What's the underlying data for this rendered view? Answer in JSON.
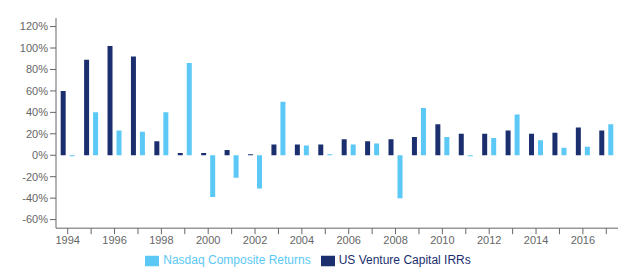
{
  "chart_data": {
    "type": "bar",
    "categories": [
      "1994",
      null,
      "1996",
      null,
      "1998",
      null,
      "2000",
      null,
      "2002",
      null,
      "2004",
      null,
      "2006",
      null,
      "2008",
      null,
      "2010",
      null,
      "2012",
      null,
      "2014",
      null,
      "2016",
      null
    ],
    "series": [
      {
        "name": "US Venture Capital IRRs",
        "color": "#1b2f6e",
        "values": [
          0.6,
          0.89,
          1.02,
          0.92,
          0.13,
          0.02,
          0.02,
          0.05,
          0.01,
          0.1,
          0.1,
          0.1,
          0.15,
          0.13,
          0.15,
          0.17,
          0.29,
          0.2,
          0.2,
          0.23,
          0.2,
          0.21,
          0.26,
          0.23
        ]
      },
      {
        "name": "Nasdaq Composite Returns",
        "color": "#5bc8f5",
        "values": [
          -0.01,
          0.4,
          0.23,
          0.22,
          0.4,
          0.86,
          -0.39,
          -0.21,
          -0.31,
          0.5,
          0.09,
          0.01,
          0.1,
          0.11,
          -0.4,
          0.44,
          0.17,
          -0.01,
          0.16,
          0.38,
          0.14,
          0.07,
          0.08,
          0.29
        ]
      }
    ],
    "ylim": [
      -0.68,
      1.28
    ],
    "yticks": [
      {
        "value": -0.6,
        "label": "-60%"
      },
      {
        "value": -0.4,
        "label": "-40%"
      },
      {
        "value": -0.2,
        "label": "-20%"
      },
      {
        "value": 0,
        "label": "0%"
      },
      {
        "value": 0.2,
        "label": "20%"
      },
      {
        "value": 0.4,
        "label": "40%"
      },
      {
        "value": 0.6,
        "label": "60%"
      },
      {
        "value": 0.8,
        "label": "80%"
      },
      {
        "value": 1.0,
        "label": "100%"
      },
      {
        "value": 1.2,
        "label": "120%"
      }
    ],
    "grid": false,
    "legend": "bottom"
  }
}
